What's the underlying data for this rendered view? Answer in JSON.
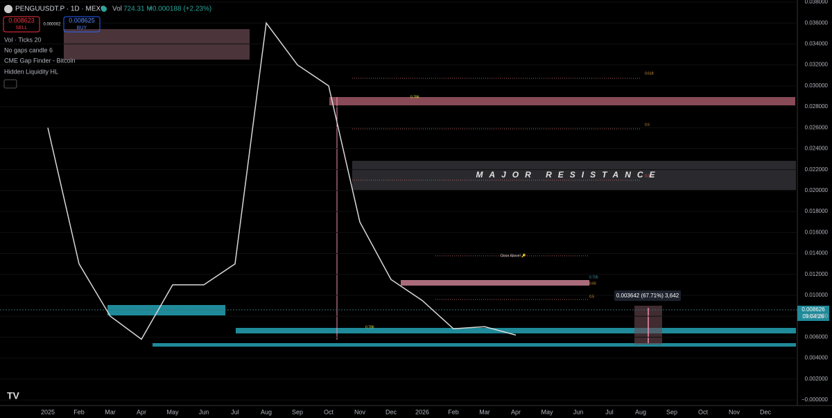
{
  "header": {
    "symbol": "PENGUUSDT.P · 1D · MEXC",
    "vol_label": "Vol",
    "vol_value": "724.31 M",
    "change": "+0.000188 (+2.23%)",
    "sell_price": "0.008623",
    "sell_label": "SELL",
    "spread": "0.000002",
    "buy_price": "0.008625",
    "buy_label": "BUY"
  },
  "indicators": [
    "Vol · Ticks 20",
    "No gaps candle 6",
    "CME Gap Finder - Bitcoin",
    "Hidden Liquidity HL"
  ],
  "annotations": {
    "fib_upper": [
      "0.618",
      "0.786",
      "0.5",
      "0.382"
    ],
    "resistance": "MAJOR RESISTANCE",
    "close_above": "Close Above! 🔑",
    "fib_lower": [
      "0.705",
      "0.65",
      "0.5",
      "0.786"
    ],
    "measure": "0.003642 (67.71%) 3,642",
    "last_price": "0.008626",
    "countdown": "09:04:26"
  },
  "chart_data": {
    "type": "line",
    "color": "#d9d9d9",
    "categories": [
      "2025",
      "Feb",
      "Mar",
      "Apr",
      "May",
      "Jun",
      "Jul",
      "Aug",
      "Sep",
      "Oct",
      "Nov",
      "Dec",
      "2026",
      "Feb",
      "Mar",
      "Apr",
      "May",
      "Jun",
      "Jul",
      "Aug",
      "Sep",
      "Oct",
      "Nov",
      "Dec"
    ],
    "values": [
      0.026,
      0.013,
      0.008,
      0.0058,
      0.011,
      0.011,
      0.013,
      0.036,
      0.032,
      0.03,
      0.017,
      0.0115,
      0.0095,
      0.0068,
      0.007,
      0.0062,
      null,
      null,
      null,
      null,
      null,
      null,
      null,
      null
    ],
    "ylim": [
      0,
      0.038
    ],
    "yticks": [
      {
        "value": 0,
        "label": "−0.000000"
      },
      {
        "value": 0.002,
        "label": "0.002000"
      },
      {
        "value": 0.004,
        "label": "0.004000"
      },
      {
        "value": 0.006,
        "label": "0.006000"
      },
      {
        "value": 0.008,
        "label": "0.008000"
      },
      {
        "value": 0.01,
        "label": "0.010000"
      },
      {
        "value": 0.012,
        "label": "0.012000"
      },
      {
        "value": 0.014,
        "label": "0.014000"
      },
      {
        "value": 0.016,
        "label": "0.016000"
      },
      {
        "value": 0.018,
        "label": "0.018000"
      },
      {
        "value": 0.02,
        "label": "0.020000"
      },
      {
        "value": 0.022,
        "label": "0.022000"
      },
      {
        "value": 0.024,
        "label": "0.024000"
      },
      {
        "value": 0.026,
        "label": "0.026000"
      },
      {
        "value": 0.028,
        "label": "0.028000"
      },
      {
        "value": 0.03,
        "label": "0.030000"
      },
      {
        "value": 0.032,
        "label": "0.032000"
      },
      {
        "value": 0.034,
        "label": "0.034000"
      },
      {
        "value": 0.036,
        "label": "0.036000"
      },
      {
        "value": 0.038,
        "label": "0.038000"
      }
    ]
  }
}
